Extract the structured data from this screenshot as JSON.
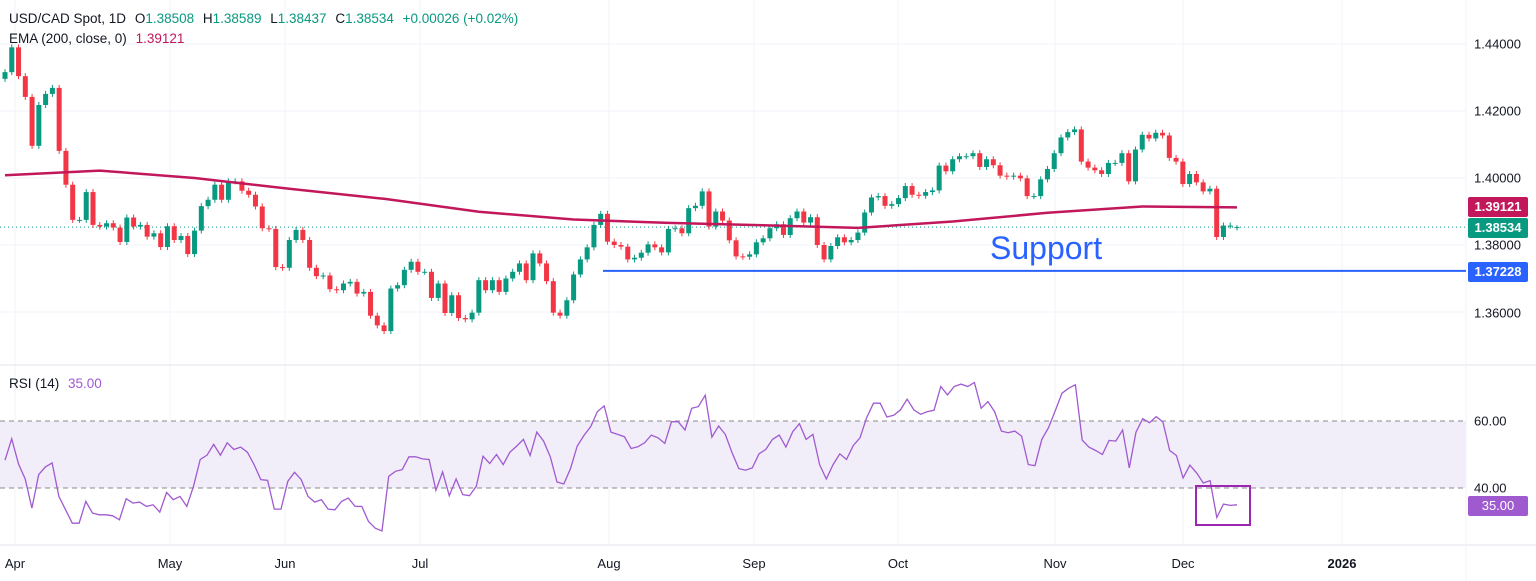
{
  "header": {
    "symbol": "USD/CAD Spot, 1D",
    "open_label": "O",
    "open": "1.38508",
    "high_label": "H",
    "high": "1.38589",
    "low_label": "L",
    "low": "1.38437",
    "close_label": "C",
    "close": "1.38534",
    "change": "+0.00026 (+0.02%)"
  },
  "ema": {
    "label": "EMA (200, close, 0)",
    "value": "1.39121",
    "badge": "1.39121"
  },
  "rsi": {
    "label": "RSI (14)",
    "value": "35.00",
    "badge": "35.00"
  },
  "price_badge": "1.38534",
  "support": {
    "text": "Support",
    "badge": "1.37228"
  },
  "price_axis": [
    "1.44000",
    "1.42000",
    "1.40000",
    "1.38000",
    "1.36000"
  ],
  "rsi_axis": [
    "60.00",
    "40.00"
  ],
  "time_axis": [
    "Apr",
    "May",
    "Jun",
    "Jul",
    "Aug",
    "Sep",
    "Oct",
    "Nov",
    "Dec",
    "2026"
  ],
  "colors": {
    "up": "#089981",
    "down": "#f23645",
    "ema": "#c2185b",
    "rsi": "#a05ad0",
    "support": "#2962ff",
    "rsi_box": "#9c27b0"
  },
  "chart_data": {
    "type": "candlestick",
    "price_range": [
      1.345,
      1.447
    ],
    "support_level": 1.37228,
    "last": {
      "open": 1.38508,
      "high": 1.38589,
      "low": 1.38437,
      "close": 1.38534
    },
    "closes": [
      1.4316,
      1.439,
      1.4304,
      1.4242,
      1.4096,
      1.4218,
      1.4251,
      1.4269,
      1.4081,
      1.398,
      1.3875,
      1.3875,
      1.3958,
      1.386,
      1.3855,
      1.3865,
      1.3852,
      1.3809,
      1.3882,
      1.3855,
      1.386,
      1.3825,
      1.3835,
      1.3794,
      1.3856,
      1.3815,
      1.3827,
      1.3773,
      1.3843,
      1.3916,
      1.3935,
      1.398,
      1.3935,
      1.399,
      1.399,
      1.3962,
      1.395,
      1.3915,
      1.385,
      1.3848,
      1.3734,
      1.3732,
      1.3815,
      1.3845,
      1.3815,
      1.3732,
      1.3707,
      1.3709,
      1.3668,
      1.3665,
      1.3685,
      1.369,
      1.3655,
      1.366,
      1.3589,
      1.356,
      1.3543,
      1.367,
      1.368,
      1.3726,
      1.375,
      1.372,
      1.372,
      1.3642,
      1.3685,
      1.3597,
      1.365,
      1.3582,
      1.3578,
      1.3598,
      1.3695,
      1.3665,
      1.3695,
      1.366,
      1.37,
      1.372,
      1.3745,
      1.3695,
      1.3775,
      1.3745,
      1.3692,
      1.3598,
      1.3589,
      1.3635,
      1.3712,
      1.3757,
      1.3793,
      1.386,
      1.3893,
      1.381,
      1.38,
      1.3795,
      1.3757,
      1.3762,
      1.3777,
      1.3802,
      1.3793,
      1.3778,
      1.3848,
      1.385,
      1.3835,
      1.391,
      1.3917,
      1.396,
      1.3855,
      1.39,
      1.3873,
      1.3814,
      1.3766,
      1.3765,
      1.3772,
      1.3808,
      1.382,
      1.385,
      1.3862,
      1.383,
      1.388,
      1.39,
      1.3867,
      1.3883,
      1.38,
      1.3757,
      1.3797,
      1.3823,
      1.3808,
      1.3815,
      1.3837,
      1.3897,
      1.3942,
      1.3946,
      1.3917,
      1.3922,
      1.394,
      1.3976,
      1.395,
      1.3947,
      1.3958,
      1.3963,
      1.4037,
      1.402,
      1.4056,
      1.4065,
      1.4065,
      1.4074,
      1.4033,
      1.4056,
      1.4038,
      1.4007,
      1.4004,
      1.4007,
      1.3999,
      1.3946,
      1.3946,
      1.3996,
      1.4027,
      1.4074,
      1.4121,
      1.4137,
      1.4145,
      1.4049,
      1.4031,
      1.4023,
      1.4012,
      1.4045,
      1.4045,
      1.4074,
      1.399,
      1.4085,
      1.4129,
      1.4118,
      1.4135,
      1.4127,
      1.406,
      1.4049,
      1.3982,
      1.4012,
      1.3987,
      1.396,
      1.3968,
      1.3824,
      1.3858,
      1.3858,
      1.38534
    ],
    "ema_values": [
      1.4008,
      1.4022,
      1.4,
      1.3968,
      1.3938,
      1.3899,
      1.3876,
      1.3866,
      1.3859,
      1.3851,
      1.387,
      1.3896,
      1.3915,
      1.39121
    ],
    "rsi_range": [
      22,
      78
    ],
    "rsi_bands": [
      40,
      60
    ],
    "rsi_values": [
      48.3,
      54.7,
      47.2,
      42.7,
      34,
      44,
      46.3,
      47.5,
      37.5,
      33.5,
      29.5,
      29.5,
      36,
      32.5,
      32,
      32,
      31.7,
      30.5,
      36.8,
      35.5,
      35.8,
      34.5,
      35,
      32.8,
      38.7,
      36.5,
      37.5,
      34.5,
      40.5,
      48.5,
      49.8,
      53,
      49.8,
      53.5,
      51.5,
      52.2,
      50.7,
      47,
      42.5,
      42.3,
      33.7,
      33.7,
      42,
      44.7,
      42.5,
      37.5,
      35.8,
      36.5,
      33.7,
      33.5,
      36,
      37,
      34.5,
      34.5,
      30,
      28,
      27.2,
      43.5,
      45,
      45.5,
      49.3,
      49.3,
      48.7,
      48.5,
      39.3,
      44.8,
      37.7,
      42.7,
      38,
      37.7,
      40.5,
      49.5,
      47.3,
      50,
      47,
      50.7,
      52.5,
      54.5,
      49.7,
      56.7,
      54,
      49.3,
      41.8,
      41.2,
      45.8,
      52.5,
      55.7,
      58.3,
      62.8,
      64.5,
      56.7,
      56,
      55.3,
      51.8,
      52.3,
      53.5,
      55.8,
      55,
      53.3,
      59.8,
      59.8,
      57.3,
      63.8,
      64.3,
      67.7,
      55.2,
      58.5,
      56,
      50.5,
      45.8,
      45.3,
      46,
      50.2,
      51.5,
      54.5,
      55.8,
      52.2,
      56.8,
      59.2,
      54.5,
      56,
      47,
      42.7,
      47,
      50.2,
      48.5,
      52.7,
      55,
      61,
      65.3,
      65.3,
      61.2,
      61.7,
      63.3,
      66.5,
      63.3,
      62,
      62.8,
      63.2,
      70.3,
      67.8,
      70.3,
      71,
      70.3,
      71.5,
      63.8,
      65.8,
      62.8,
      57,
      56.5,
      57,
      55.5,
      47,
      46.7,
      54.5,
      58,
      63,
      68.3,
      69.8,
      70.8,
      54.3,
      52.2,
      51.2,
      50,
      54.2,
      54,
      57.3,
      46,
      56.7,
      60.7,
      59.5,
      61.3,
      59.7,
      51.2,
      49.7,
      43,
      46.8,
      44.5,
      41.5,
      42.2,
      31.2,
      35.2,
      34.8,
      35
    ]
  }
}
